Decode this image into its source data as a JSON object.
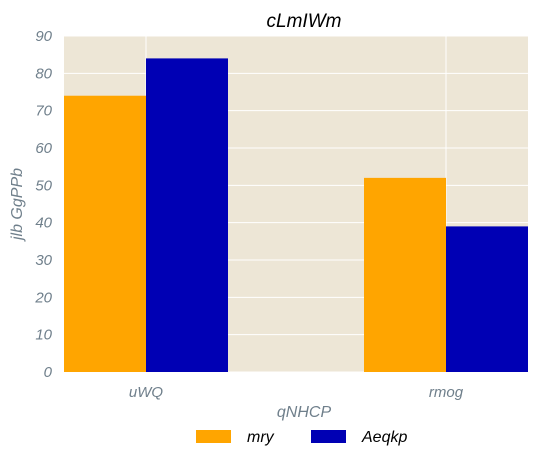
{
  "chart_data": {
    "type": "bar",
    "title": "cLmIWm",
    "xlabel": "qNHCP",
    "ylabel": "jlb GgPPb",
    "categories": [
      "uWQ",
      "rmog"
    ],
    "series": [
      {
        "name": "mry",
        "values": [
          74,
          52
        ],
        "color": "#ffa500"
      },
      {
        "name": "Aeqkp",
        "values": [
          84,
          39
        ],
        "color": "#0000b4"
      }
    ],
    "ylim": [
      0,
      90
    ],
    "yticks": [
      0,
      10,
      20,
      30,
      40,
      50,
      60,
      70,
      80,
      90
    ],
    "grid": true,
    "legend_position": "bottom-center",
    "background": "#ede6d6",
    "grid_color": "#ffffff"
  }
}
